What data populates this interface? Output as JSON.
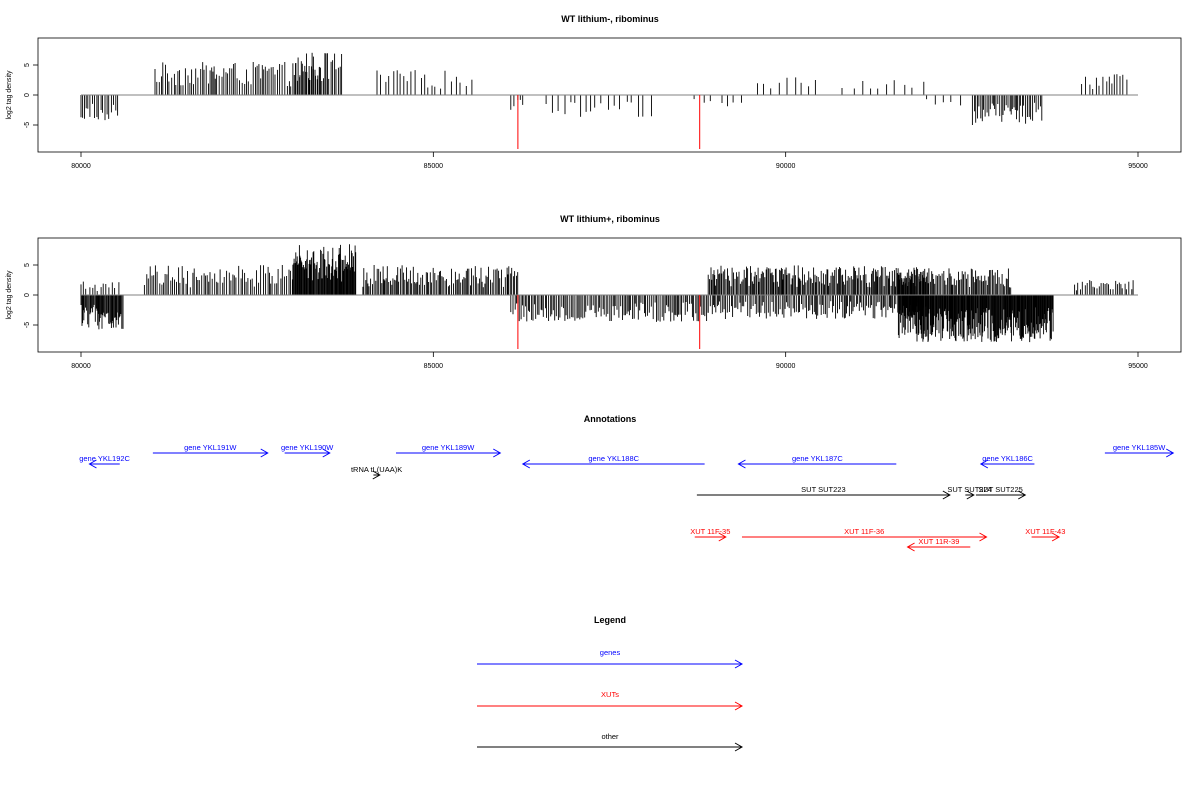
{
  "chart_data": [
    {
      "type": "bar",
      "title": "WT lithium-, ribominus",
      "xlabel": "",
      "ylabel": "log2 tag density",
      "xlim": [
        80000,
        95000
      ],
      "ylim": [
        -9.5,
        9.5
      ],
      "xticks": [
        80000,
        85000,
        90000,
        95000
      ],
      "xtick_labels": [
        "80000",
        "85000",
        "90000",
        "95000"
      ],
      "yticks": [
        -5,
        0,
        5
      ],
      "ytick_labels": [
        "-5",
        "0",
        "5"
      ],
      "grid": false,
      "baseline_color": "#808080",
      "highlight_color": "#ff0000",
      "highlights": [
        {
          "x": 86200,
          "y": -9
        },
        {
          "x": 88780,
          "y": -9
        }
      ],
      "segments": [
        {
          "range": [
            80000,
            80550
          ],
          "strand": "minus",
          "max": 4.5,
          "step": 30
        },
        {
          "range": [
            81050,
            83400
          ],
          "strand": "plus",
          "max": 5.5,
          "step": 28
        },
        {
          "range": [
            83050,
            83700
          ],
          "strand": "plus",
          "max": 7.2,
          "step": 25
        },
        {
          "range": [
            84200,
            85600
          ],
          "strand": "plus",
          "max": 4.2,
          "step": 65
        },
        {
          "range": [
            86100,
            86300
          ],
          "strand": "minus",
          "max": 2.5,
          "step": 40
        },
        {
          "range": [
            86600,
            88200
          ],
          "strand": "minus",
          "max": 3.8,
          "step": 90
        },
        {
          "range": [
            88700,
            89400
          ],
          "strand": "minus",
          "max": 2.0,
          "step": 120
        },
        {
          "range": [
            89600,
            90500
          ],
          "strand": "plus",
          "max": 3.0,
          "step": 90
        },
        {
          "range": [
            90800,
            92100
          ],
          "strand": "plus",
          "max": 2.5,
          "step": 130
        },
        {
          "range": [
            92000,
            92600
          ],
          "strand": "minus",
          "max": 2.0,
          "step": 100
        },
        {
          "range": [
            92650,
            93650
          ],
          "strand": "minus",
          "max": 5.0,
          "step": 22
        },
        {
          "range": [
            94200,
            94850
          ],
          "strand": "plus",
          "max": 3.6,
          "step": 45
        }
      ]
    },
    {
      "type": "bar",
      "title": "WT lithium+, ribominus",
      "xlabel": "",
      "ylabel": "log2 tag density",
      "xlim": [
        80000,
        95000
      ],
      "ylim": [
        -9.5,
        9.5
      ],
      "xticks": [
        80000,
        85000,
        90000,
        95000
      ],
      "xtick_labels": [
        "80000",
        "85000",
        "90000",
        "95000"
      ],
      "yticks": [
        -5,
        0,
        5
      ],
      "ytick_labels": [
        "-5",
        "0",
        "5"
      ],
      "grid": false,
      "baseline_color": "#808080",
      "highlight_color": "#ff0000",
      "highlights": [
        {
          "x": 86200,
          "y": -9
        },
        {
          "x": 88780,
          "y": -9
        }
      ],
      "segments": [
        {
          "range": [
            80000,
            80600
          ],
          "strand": "minus",
          "max": 6.0,
          "step": 12
        },
        {
          "range": [
            80000,
            80600
          ],
          "strand": "plus",
          "max": 2.5,
          "step": 45
        },
        {
          "range": [
            80900,
            83000
          ],
          "strand": "plus",
          "max": 5.0,
          "step": 30
        },
        {
          "range": [
            83000,
            83900
          ],
          "strand": "plus",
          "max": 8.5,
          "step": 10
        },
        {
          "range": [
            84000,
            86200
          ],
          "strand": "plus",
          "max": 5.0,
          "step": 20
        },
        {
          "range": [
            86100,
            88900
          ],
          "strand": "minus",
          "max": 4.5,
          "step": 22
        },
        {
          "range": [
            88900,
            92000
          ],
          "strand": "plus",
          "max": 5.0,
          "step": 16
        },
        {
          "range": [
            88900,
            92000
          ],
          "strand": "minus",
          "max": 4.0,
          "step": 22
        },
        {
          "range": [
            91600,
            93800
          ],
          "strand": "minus",
          "max": 8.0,
          "step": 9
        },
        {
          "range": [
            91600,
            93200
          ],
          "strand": "plus",
          "max": 4.5,
          "step": 18
        },
        {
          "range": [
            94100,
            94950
          ],
          "strand": "plus",
          "max": 2.5,
          "step": 30
        }
      ]
    }
  ],
  "annotations": {
    "title": "Annotations",
    "xlim": [
      80000,
      95000
    ],
    "features": [
      {
        "label": "gene YKL192C",
        "type": "gene",
        "start": 80120,
        "end": 80550,
        "strand": "-",
        "row": 1
      },
      {
        "label": "gene YKL191W",
        "type": "gene",
        "start": 81020,
        "end": 82650,
        "strand": "+",
        "row": 0
      },
      {
        "label": "gene YKL190W",
        "type": "gene",
        "start": 82890,
        "end": 83530,
        "strand": "+",
        "row": 0
      },
      {
        "label": "gene YKL189W",
        "type": "gene",
        "start": 84470,
        "end": 85950,
        "strand": "+",
        "row": 0
      },
      {
        "label": "gene YKL188C",
        "type": "gene",
        "start": 86270,
        "end": 88850,
        "strand": "-",
        "row": 1
      },
      {
        "label": "gene YKL187C",
        "type": "gene",
        "start": 89330,
        "end": 91570,
        "strand": "-",
        "row": 1
      },
      {
        "label": "gene YKL186C",
        "type": "gene",
        "start": 92770,
        "end": 93530,
        "strand": "-",
        "row": 1
      },
      {
        "label": "gene YKL185W",
        "type": "gene",
        "start": 94530,
        "end": 95500,
        "strand": "+",
        "row": 0
      },
      {
        "label": "tRNA tL(UAA)K",
        "type": "other",
        "start": 84150,
        "end": 84240,
        "strand": "+",
        "row": 2
      },
      {
        "label": "SUT SUT223",
        "type": "other",
        "start": 88740,
        "end": 92330,
        "strand": "+",
        "row": 3
      },
      {
        "label": "SUT SUT224",
        "type": "other",
        "start": 92550,
        "end": 92670,
        "strand": "+",
        "row": 3
      },
      {
        "label": "SUT SUT225",
        "type": "other",
        "start": 92700,
        "end": 93400,
        "strand": "+",
        "row": 3
      },
      {
        "label": "XUT 11F-35",
        "type": "xut",
        "start": 88710,
        "end": 89150,
        "strand": "+",
        "row": 4
      },
      {
        "label": "XUT 11F-36",
        "type": "xut",
        "start": 89380,
        "end": 92850,
        "strand": "+",
        "row": 4
      },
      {
        "label": "XUT 11R-39",
        "type": "xut",
        "start": 91730,
        "end": 92620,
        "strand": "-",
        "row": 5
      },
      {
        "label": "XUT 11F-43",
        "type": "xut",
        "start": 93490,
        "end": 93880,
        "strand": "+",
        "row": 4
      }
    ]
  },
  "legend": {
    "title": "Legend",
    "items": [
      {
        "label": "genes",
        "color": "#0000ff"
      },
      {
        "label": "XUTs",
        "color": "#ff0000"
      },
      {
        "label": "other",
        "color": "#000000"
      }
    ]
  },
  "colors": {
    "gene": "#0000ff",
    "xut": "#ff0000",
    "other": "#000000"
  }
}
